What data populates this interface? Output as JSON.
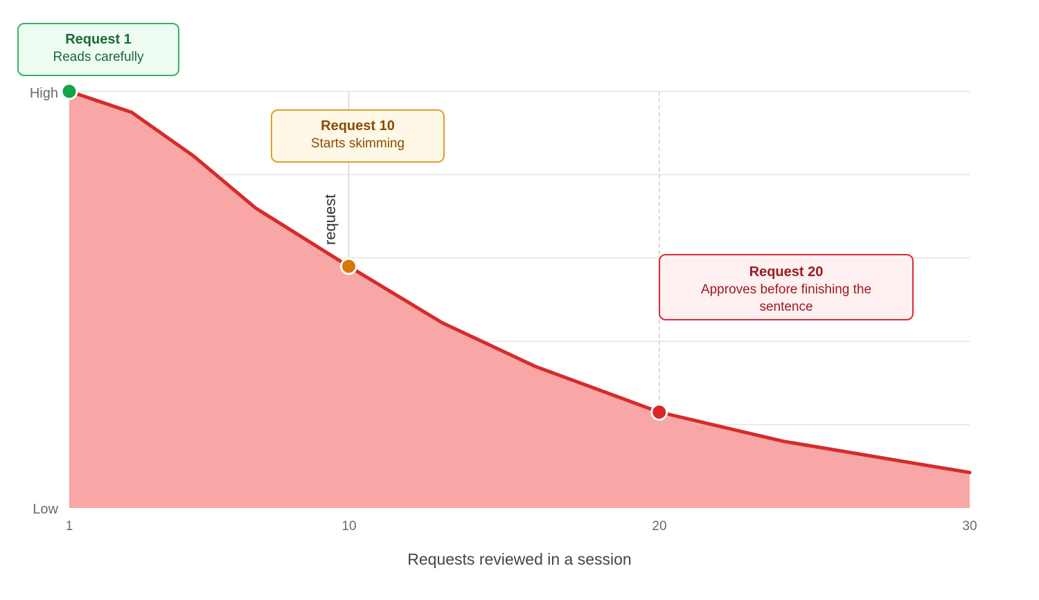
{
  "chart_data": {
    "type": "area",
    "xlabel": "Requests reviewed in a session",
    "ylabel": "request",
    "x_ticks": [
      1,
      10,
      20,
      30
    ],
    "y_ticks": [
      "High",
      "Low"
    ],
    "xlim": [
      1,
      30
    ],
    "ylim": [
      0,
      1
    ],
    "grid": true,
    "series": [
      {
        "x": [
          1,
          3,
          5,
          7,
          10,
          13,
          16,
          20,
          24,
          28,
          30
        ],
        "y": [
          1.0,
          0.95,
          0.845,
          0.72,
          0.58,
          0.445,
          0.34,
          0.23,
          0.16,
          0.11,
          0.085
        ],
        "color": "#d62b2b",
        "fill": "#f9a6a6"
      }
    ],
    "markers": [
      {
        "x": 1,
        "y": 1.0,
        "color": "#16a34a"
      },
      {
        "x": 10,
        "y": 0.58,
        "color": "#d97706"
      },
      {
        "x": 20,
        "y": 0.23,
        "color": "#dc2626"
      }
    ],
    "annotations": [
      {
        "title": "Request 1",
        "text": "Reads carefully"
      },
      {
        "title": "Request 10",
        "text": "Starts skimming"
      },
      {
        "title": "Request 20",
        "text": "Approves before finishing the sentence"
      }
    ]
  }
}
